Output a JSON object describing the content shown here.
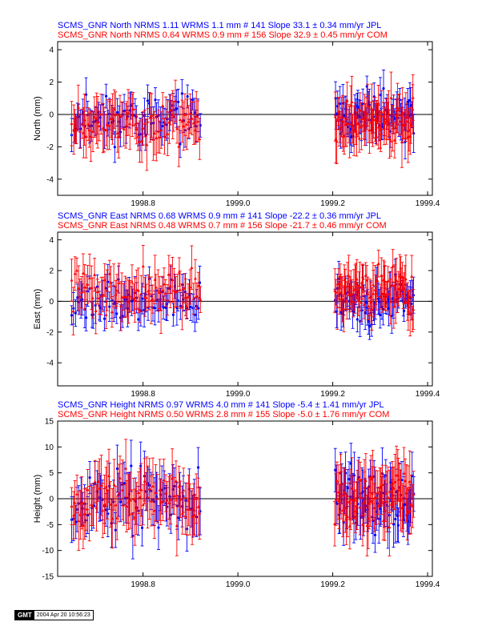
{
  "chart_data": [
    {
      "type": "scatter",
      "ylabel": "North (mm)",
      "ylim": [
        -5,
        4.5
      ],
      "yticks": [
        -4,
        -2,
        0,
        2,
        4
      ],
      "xlim": [
        1998.62,
        1999.41
      ],
      "xticks": [
        1998.8,
        1999.0,
        1999.2,
        1999.4
      ],
      "xtick_labels": [
        "1998.8",
        "1999.0",
        "1999.2",
        "1999.4"
      ],
      "zero_line": true,
      "series": [
        {
          "name": "SCMS_GNR North NRMS 1.11 WRMS  1.1 mm # 141 Slope   33.1 ±  0.34 mm/yr JPL",
          "color": "#0000ff",
          "marker": "circle",
          "seed": 11,
          "segments": [
            [
              1998.65,
              1998.92,
              72
            ],
            [
              1999.205,
              1999.37,
              69
            ]
          ],
          "mean": -0.2,
          "spread": 0.9,
          "err": [
            0.6,
            1.2
          ]
        },
        {
          "name": "SCMS_GNR North NRMS 0.64 WRMS  0.9 mm # 156 Slope   32.9 ±  0.45 mm/yr COM",
          "color": "#ff0000",
          "marker": "triangle",
          "seed": 23,
          "segments": [
            [
              1998.65,
              1998.92,
              80
            ],
            [
              1999.205,
              1999.37,
              76
            ]
          ],
          "mean": -0.5,
          "spread": 0.9,
          "err": [
            0.8,
            1.6
          ]
        }
      ]
    },
    {
      "type": "scatter",
      "ylabel": "East (mm)",
      "ylim": [
        -5.5,
        4.5
      ],
      "yticks": [
        -4,
        -2,
        0,
        2,
        4
      ],
      "xlim": [
        1998.62,
        1999.41
      ],
      "xticks": [
        1998.8,
        1999.0,
        1999.2,
        1999.4
      ],
      "xtick_labels": [
        "1998.8",
        "1999.0",
        "1999.2",
        "1999.4"
      ],
      "zero_line": true,
      "series": [
        {
          "name": "SCMS_GNR East NRMS 0.68 WRMS  0.9 mm # 141 Slope  -22.2 ±  0.36 mm/yr JPL",
          "color": "#0000ff",
          "marker": "circle",
          "seed": 37,
          "segments": [
            [
              1998.65,
              1998.92,
              72
            ],
            [
              1999.205,
              1999.37,
              69
            ]
          ],
          "mean": 0.0,
          "spread": 0.9,
          "err": [
            0.6,
            1.2
          ]
        },
        {
          "name": "SCMS_GNR East NRMS 0.48 WRMS  0.7 mm # 156 Slope  -21.7 ±  0.46 mm/yr COM",
          "color": "#ff0000",
          "marker": "triangle",
          "seed": 41,
          "segments": [
            [
              1998.65,
              1998.92,
              80
            ],
            [
              1999.205,
              1999.37,
              76
            ]
          ],
          "mean": 0.6,
          "spread": 0.9,
          "err": [
            0.8,
            1.6
          ]
        }
      ]
    },
    {
      "type": "scatter",
      "ylabel": "Height (mm)",
      "ylim": [
        -15,
        15
      ],
      "yticks": [
        -15,
        -10,
        -5,
        0,
        5,
        10,
        15
      ],
      "xlim": [
        1998.62,
        1999.41
      ],
      "xticks": [
        1998.8,
        1999.0,
        1999.2,
        1999.4
      ],
      "xtick_labels": [
        "1998.8",
        "1999.0",
        "1999.2",
        "1999.4"
      ],
      "zero_line": true,
      "series": [
        {
          "name": "SCMS_GNR Height NRMS 0.97 WRMS  4.0 mm # 141 Slope   -5.4 ±  1.41 mm/yr JPL",
          "color": "#0000ff",
          "marker": "circle",
          "seed": 53,
          "segments": [
            [
              1998.65,
              1998.92,
              72
            ],
            [
              1999.205,
              1999.37,
              69
            ]
          ],
          "mean": 0.0,
          "spread": 4.0,
          "err": [
            3.0,
            5.0
          ]
        },
        {
          "name": "SCMS_GNR Height NRMS 0.50 WRMS  2.8 mm # 155 Slope   -5.0 ±  1.76 mm/yr COM",
          "color": "#ff0000",
          "marker": "triangle",
          "seed": 67,
          "segments": [
            [
              1998.65,
              1998.92,
              80
            ],
            [
              1999.205,
              1999.37,
              75
            ]
          ],
          "mean": 0.0,
          "spread": 3.2,
          "err": [
            3.5,
            6.0
          ]
        }
      ]
    }
  ],
  "footer": {
    "logo": "GMT",
    "timestamp": "2004 Apr 20 10:56:23"
  }
}
